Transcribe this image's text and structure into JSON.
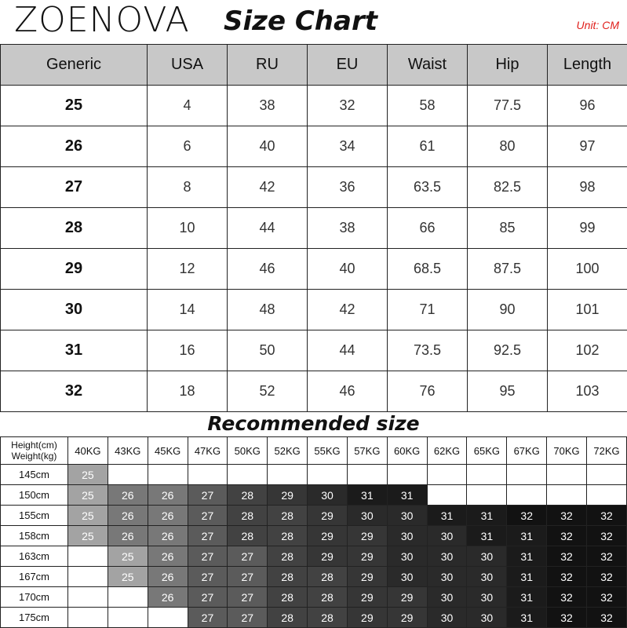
{
  "brand": "ZOENOVA",
  "title": "Size Chart",
  "unit": "Unit: CM",
  "size_table": {
    "headers": [
      "Generic",
      "USA",
      "RU",
      "EU",
      "Waist",
      "Hip",
      "Length"
    ],
    "rows": [
      [
        "25",
        "4",
        "38",
        "32",
        "58",
        "77.5",
        "96"
      ],
      [
        "26",
        "6",
        "40",
        "34",
        "61",
        "80",
        "97"
      ],
      [
        "27",
        "8",
        "42",
        "36",
        "63.5",
        "82.5",
        "98"
      ],
      [
        "28",
        "10",
        "44",
        "38",
        "66",
        "85",
        "99"
      ],
      [
        "29",
        "12",
        "46",
        "40",
        "68.5",
        "87.5",
        "100"
      ],
      [
        "30",
        "14",
        "48",
        "42",
        "71",
        "90",
        "101"
      ],
      [
        "31",
        "16",
        "50",
        "44",
        "73.5",
        "92.5",
        "102"
      ],
      [
        "32",
        "18",
        "52",
        "46",
        "76",
        "95",
        "103"
      ]
    ]
  },
  "recommended": {
    "title": "Recommended size",
    "corner_top": "Height(cm)",
    "corner_bottom": "Weight(kg)",
    "weights": [
      "40KG",
      "43KG",
      "45KG",
      "47KG",
      "50KG",
      "52KG",
      "55KG",
      "57KG",
      "60KG",
      "62KG",
      "65KG",
      "67KG",
      "70KG",
      "72KG"
    ],
    "rows": [
      {
        "height": "145cm",
        "sizes": [
          "25",
          "",
          "",
          "",
          "",
          "",
          "",
          "",
          "",
          "",
          "",
          "",
          "",
          ""
        ]
      },
      {
        "height": "150cm",
        "sizes": [
          "25",
          "26",
          "26",
          "27",
          "28",
          "29",
          "30",
          "31",
          "31",
          "",
          "",
          "",
          "",
          ""
        ]
      },
      {
        "height": "155cm",
        "sizes": [
          "25",
          "26",
          "26",
          "27",
          "28",
          "28",
          "29",
          "30",
          "30",
          "31",
          "31",
          "32",
          "32",
          "32"
        ]
      },
      {
        "height": "158cm",
        "sizes": [
          "25",
          "26",
          "26",
          "27",
          "28",
          "28",
          "29",
          "29",
          "30",
          "30",
          "31",
          "31",
          "32",
          "32"
        ]
      },
      {
        "height": "163cm",
        "sizes": [
          "",
          "25",
          "26",
          "27",
          "27",
          "28",
          "29",
          "29",
          "30",
          "30",
          "30",
          "31",
          "32",
          "32"
        ]
      },
      {
        "height": "167cm",
        "sizes": [
          "",
          "25",
          "26",
          "27",
          "27",
          "28",
          "28",
          "29",
          "30",
          "30",
          "30",
          "31",
          "32",
          "32"
        ]
      },
      {
        "height": "170cm",
        "sizes": [
          "",
          "",
          "26",
          "27",
          "27",
          "28",
          "28",
          "29",
          "29",
          "30",
          "30",
          "31",
          "32",
          "32"
        ]
      },
      {
        "height": "175cm",
        "sizes": [
          "",
          "",
          "",
          "27",
          "27",
          "28",
          "28",
          "29",
          "29",
          "30",
          "30",
          "31",
          "32",
          "32"
        ]
      }
    ],
    "shade_colors": {
      "25": "#a3a3a3",
      "26": "#787878",
      "27": "#5b5b5b",
      "28": "#424242",
      "29": "#363636",
      "30": "#2a2a2a",
      "31": "#1b1b1b",
      "32": "#121212"
    }
  },
  "colors": {
    "header_bg": "#c8c8c8",
    "unit": "#e0201c"
  }
}
